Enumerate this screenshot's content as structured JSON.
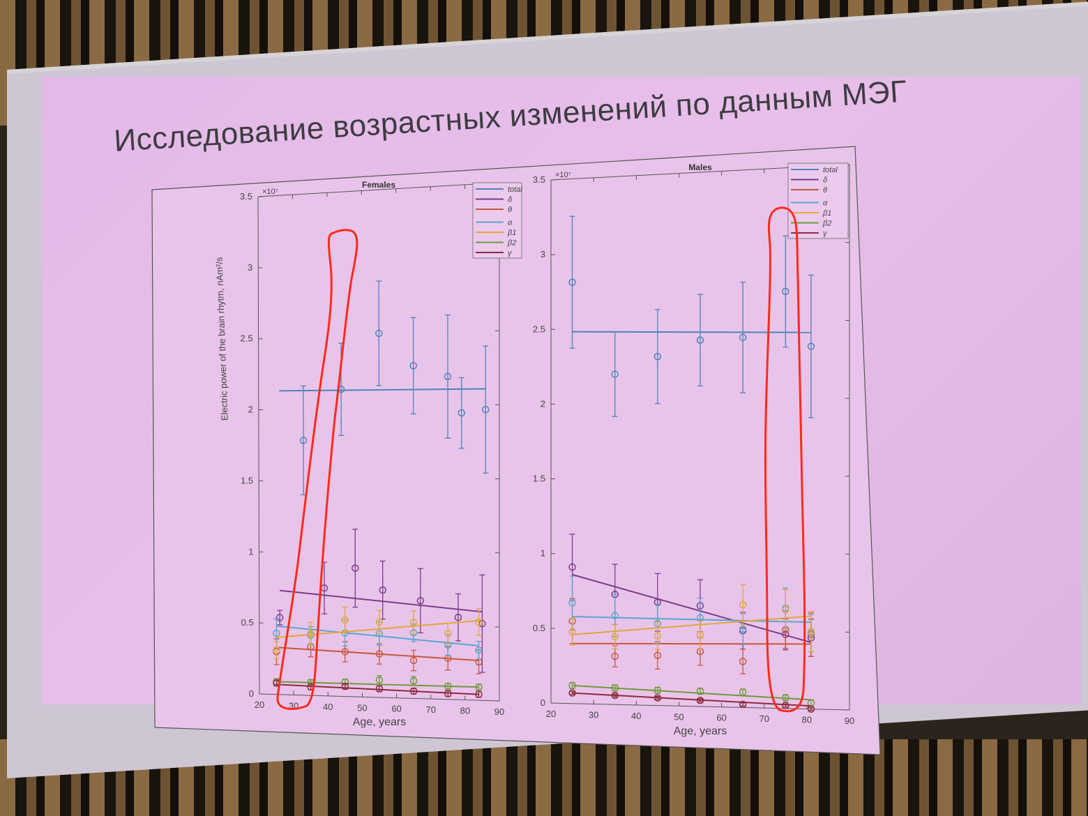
{
  "slide": {
    "title": "Исследование возрастных изменений по данным МЭГ"
  },
  "colors": {
    "total": "#4f83b8",
    "delta": "#7a3d8c",
    "theta": "#c6573c",
    "alpha": "#5aa6cf",
    "beta1": "#e3a63a",
    "beta2": "#6f9a3b",
    "gamma": "#8c2a3e",
    "highlight": "#ff2a1a"
  },
  "chart_data": [
    {
      "type": "scatter",
      "title": "Females",
      "xlabel": "Age, years",
      "ylabel": "Electric power of the brain rhytm, nAm²/s",
      "multiplier": "×10⁷",
      "xlim": [
        20,
        90
      ],
      "ylim": [
        0,
        3.5
      ],
      "x_ticks": [
        "20",
        "30",
        "40",
        "50",
        "60",
        "70",
        "80",
        "90"
      ],
      "y_ticks": [
        "0",
        "0.5",
        "1",
        "1.5",
        "2",
        "2.5",
        "3",
        "3.5"
      ],
      "legend": [
        "total",
        "δ",
        "θ",
        "α",
        "β1",
        "β2",
        "γ"
      ],
      "series": [
        {
          "name": "total",
          "x": [
            33,
            44,
            55,
            65,
            75,
            79,
            86
          ],
          "y": [
            1.78,
            2.13,
            2.51,
            2.28,
            2.2,
            1.95,
            1.97
          ],
          "err": [
            0.38,
            0.32,
            0.36,
            0.33,
            0.42,
            0.24,
            0.43
          ],
          "fit": [
            [
              26,
              2.13
            ],
            [
              86,
              2.11
            ]
          ]
        },
        {
          "name": "δ",
          "x": [
            26,
            39,
            48,
            56,
            67,
            78,
            85
          ],
          "y": [
            0.54,
            0.75,
            0.89,
            0.74,
            0.67,
            0.56,
            0.52
          ],
          "err": [
            0.05,
            0.18,
            0.27,
            0.2,
            0.22,
            0.16,
            0.33
          ],
          "fit": [
            [
              26,
              0.73
            ],
            [
              85,
              0.6
            ]
          ]
        },
        {
          "name": "θ",
          "x": [
            25,
            35,
            45,
            55,
            65,
            75,
            84
          ],
          "y": [
            0.3,
            0.34,
            0.31,
            0.3,
            0.26,
            0.28,
            0.26
          ],
          "err": [
            0.09,
            0.07,
            0.07,
            0.07,
            0.07,
            0.08,
            0.08
          ],
          "fit": [
            [
              25,
              0.33
            ],
            [
              84,
              0.27
            ]
          ]
        },
        {
          "name": "α",
          "x": [
            25,
            35,
            45,
            55,
            65,
            75,
            84
          ],
          "y": [
            0.43,
            0.42,
            0.44,
            0.44,
            0.45,
            0.37,
            0.34
          ],
          "err": [
            0.1,
            0.06,
            0.09,
            0.08,
            0.06,
            0.07,
            0.06
          ],
          "fit": [
            [
              25,
              0.48
            ],
            [
              84,
              0.37
            ]
          ]
        },
        {
          "name": "β1",
          "x": [
            25,
            35,
            45,
            55,
            65,
            75,
            84
          ],
          "y": [
            0.31,
            0.43,
            0.53,
            0.52,
            0.52,
            0.45,
            0.53
          ],
          "err": [
            0.06,
            0.08,
            0.09,
            0.08,
            0.08,
            0.07,
            0.09
          ],
          "fit": [
            [
              25,
              0.4
            ],
            [
              84,
              0.54
            ]
          ]
        },
        {
          "name": "β2",
          "x": [
            25,
            35,
            45,
            55,
            65,
            75,
            84
          ],
          "y": [
            0.09,
            0.09,
            0.1,
            0.12,
            0.12,
            0.09,
            0.09
          ],
          "err": [
            0.02,
            0.02,
            0.02,
            0.03,
            0.03,
            0.02,
            0.02
          ],
          "fit": [
            [
              25,
              0.09
            ],
            [
              84,
              0.09
            ]
          ]
        },
        {
          "name": "γ",
          "x": [
            25,
            35,
            45,
            55,
            65,
            75,
            84
          ],
          "y": [
            0.08,
            0.06,
            0.07,
            0.06,
            0.05,
            0.04,
            0.04
          ],
          "err": [
            0.02,
            0.02,
            0.02,
            0.02,
            0.02,
            0.02,
            0.02
          ],
          "fit": [
            [
              25,
              0.07
            ],
            [
              84,
              0.04
            ]
          ]
        }
      ]
    },
    {
      "type": "scatter",
      "title": "Males",
      "xlabel": "Age, years",
      "ylabel": "",
      "multiplier": "×10⁷",
      "xlim": [
        20,
        90
      ],
      "ylim": [
        0,
        3.5
      ],
      "x_ticks": [
        "20",
        "30",
        "40",
        "50",
        "60",
        "70",
        "80",
        "90"
      ],
      "y_ticks": [
        "0",
        "0.5",
        "1",
        "1.5",
        "2",
        "2.5",
        "3",
        "3.5"
      ],
      "legend": [
        "total",
        "δ",
        "θ",
        "α",
        "β1",
        "β2",
        "γ"
      ],
      "series": [
        {
          "name": "total",
          "x": [
            25,
            35,
            45,
            55,
            65,
            75,
            81
          ],
          "y": [
            2.81,
            2.19,
            2.3,
            2.4,
            2.41,
            2.7,
            2.34
          ],
          "err": [
            0.44,
            0.28,
            0.31,
            0.3,
            0.36,
            0.36,
            0.46
          ],
          "fit": [
            [
              25,
              2.48
            ],
            [
              81,
              2.43
            ]
          ]
        },
        {
          "name": "δ",
          "x": [
            25,
            35,
            45,
            55,
            65,
            75,
            81
          ],
          "y": [
            0.91,
            0.73,
            0.68,
            0.66,
            0.5,
            0.48,
            0.46
          ],
          "err": [
            0.22,
            0.2,
            0.19,
            0.17,
            0.12,
            0.1,
            0.12
          ],
          "fit": [
            [
              25,
              0.86
            ],
            [
              81,
              0.43
            ]
          ]
        },
        {
          "name": "θ",
          "x": [
            25,
            35,
            45,
            55,
            65,
            75,
            81
          ],
          "y": [
            0.55,
            0.32,
            0.33,
            0.36,
            0.3,
            0.51,
            0.48
          ],
          "err": [
            0.15,
            0.07,
            0.09,
            0.09,
            0.08,
            0.12,
            0.14
          ],
          "fit": [
            [
              25,
              0.4
            ],
            [
              81,
              0.42
            ]
          ]
        },
        {
          "name": "α",
          "x": [
            25,
            35,
            45,
            55,
            65,
            75,
            81
          ],
          "y": [
            0.67,
            0.59,
            0.54,
            0.58,
            0.51,
            0.65,
            0.49
          ],
          "err": [
            0.18,
            0.14,
            0.13,
            0.13,
            0.1,
            0.13,
            0.12
          ],
          "fit": [
            [
              25,
              0.58
            ],
            [
              81,
              0.56
            ]
          ]
        },
        {
          "name": "β1",
          "x": [
            25,
            35,
            45,
            55,
            65,
            75,
            81
          ],
          "y": [
            0.48,
            0.45,
            0.46,
            0.47,
            0.67,
            0.64,
            0.5
          ],
          "err": [
            0.09,
            0.08,
            0.09,
            0.09,
            0.13,
            0.13,
            0.13
          ],
          "fit": [
            [
              25,
              0.46
            ],
            [
              81,
              0.6
            ]
          ]
        },
        {
          "name": "β2",
          "x": [
            25,
            35,
            45,
            55,
            65,
            75,
            81
          ],
          "y": [
            0.12,
            0.11,
            0.1,
            0.1,
            0.1,
            0.07,
            0.04
          ],
          "err": [
            0.02,
            0.02,
            0.02,
            0.02,
            0.02,
            0.02,
            0.02
          ],
          "fit": [
            [
              25,
              0.12
            ],
            [
              81,
              0.06
            ]
          ]
        },
        {
          "name": "γ",
          "x": [
            25,
            35,
            45,
            55,
            65,
            75,
            81
          ],
          "y": [
            0.07,
            0.06,
            0.05,
            0.04,
            0.02,
            0.02,
            0.0
          ],
          "err": [
            0.01,
            0.01,
            0.01,
            0.01,
            0.01,
            0.01,
            0.01
          ],
          "fit": [
            [
              25,
              0.07
            ],
            [
              81,
              0.02
            ]
          ]
        }
      ]
    }
  ]
}
